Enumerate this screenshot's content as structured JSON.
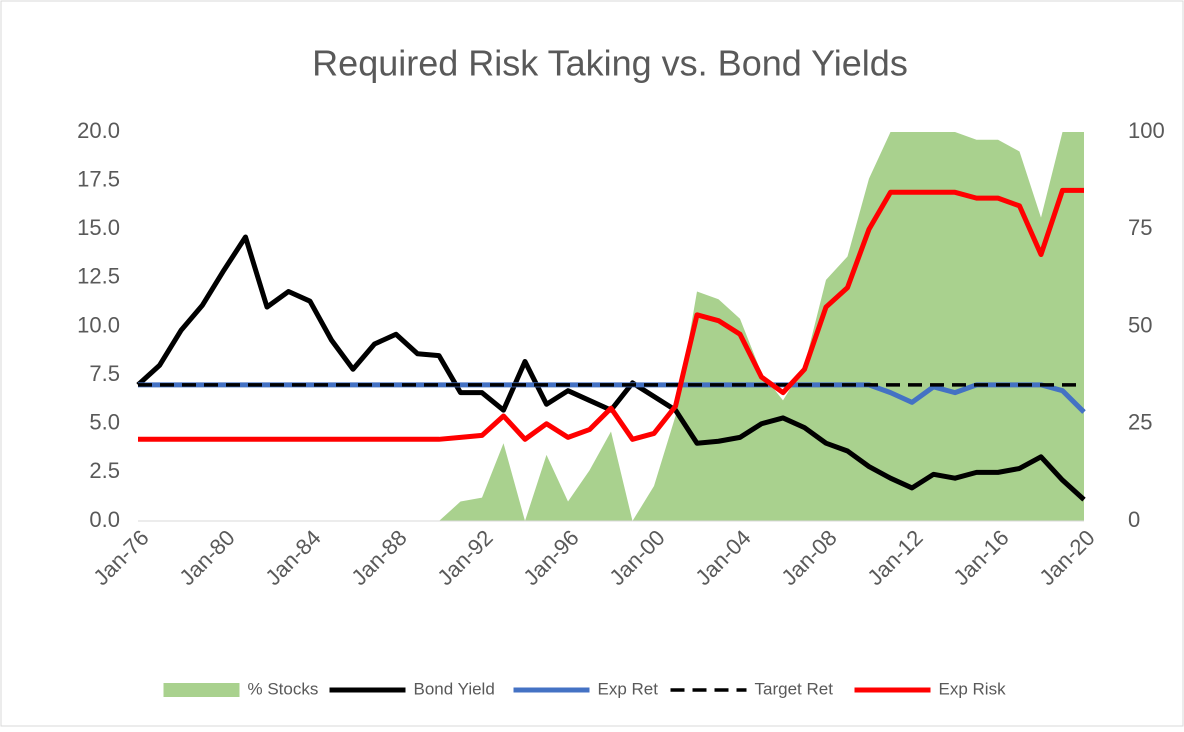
{
  "chart_data": {
    "type": "line",
    "title": "Required Risk Taking vs. Bond Yields",
    "categories": [
      "Jan-76",
      null,
      null,
      null,
      "Jan-80",
      null,
      null,
      null,
      "Jan-84",
      null,
      null,
      null,
      "Jan-88",
      null,
      null,
      null,
      "Jan-92",
      null,
      null,
      null,
      "Jan-96",
      null,
      null,
      null,
      "Jan-00",
      null,
      null,
      null,
      "Jan-04",
      null,
      null,
      null,
      "Jan-08",
      null,
      null,
      null,
      "Jan-12",
      null,
      null,
      null,
      "Jan-16",
      null,
      null,
      null,
      "Jan-20"
    ],
    "series": [
      {
        "name": "% Stocks",
        "type": "area",
        "axis": "y2",
        "color": "#a9d18e",
        "values": [
          0,
          0,
          0,
          0,
          0,
          0,
          0,
          0,
          0,
          0,
          0,
          0,
          0,
          0,
          0,
          5,
          6,
          20,
          0,
          17,
          5,
          13,
          23,
          0,
          9,
          27,
          59,
          57,
          52,
          38,
          31,
          40,
          62,
          68,
          88,
          100,
          100,
          100,
          100,
          98,
          98,
          95,
          78,
          100,
          100
        ]
      },
      {
        "name": "Bond Yield",
        "color": "#000000",
        "values": [
          7.0,
          8.0,
          9.8,
          11.1,
          12.9,
          14.6,
          11.0,
          11.8,
          11.3,
          9.3,
          7.8,
          9.1,
          9.6,
          8.6,
          8.5,
          6.6,
          6.6,
          5.7,
          8.2,
          6.0,
          6.7,
          6.2,
          5.7,
          7.1,
          6.4,
          5.7,
          4.0,
          4.1,
          4.3,
          5.0,
          5.3,
          4.8,
          4.0,
          3.6,
          2.8,
          2.2,
          1.7,
          2.4,
          2.2,
          2.5,
          2.5,
          2.7,
          3.3,
          2.1,
          1.1
        ]
      },
      {
        "name": "Exp Ret",
        "color": "#4472c4",
        "values": [
          7.0,
          7.0,
          7.0,
          7.0,
          7.0,
          7.0,
          7.0,
          7.0,
          7.0,
          7.0,
          7.0,
          7.0,
          7.0,
          7.0,
          7.0,
          7.0,
          7.0,
          7.0,
          7.0,
          7.0,
          7.0,
          7.0,
          7.0,
          7.0,
          7.0,
          7.0,
          7.0,
          7.0,
          7.0,
          7.0,
          7.0,
          7.0,
          7.0,
          7.0,
          7.0,
          6.6,
          6.1,
          6.9,
          6.6,
          7.0,
          7.0,
          7.0,
          7.0,
          6.7,
          5.6
        ]
      },
      {
        "name": "Target Ret",
        "color": "#000000",
        "dash": true,
        "values": [
          7.0,
          7.0,
          7.0,
          7.0,
          7.0,
          7.0,
          7.0,
          7.0,
          7.0,
          7.0,
          7.0,
          7.0,
          7.0,
          7.0,
          7.0,
          7.0,
          7.0,
          7.0,
          7.0,
          7.0,
          7.0,
          7.0,
          7.0,
          7.0,
          7.0,
          7.0,
          7.0,
          7.0,
          7.0,
          7.0,
          7.0,
          7.0,
          7.0,
          7.0,
          7.0,
          7.0,
          7.0,
          7.0,
          7.0,
          7.0,
          7.0,
          7.0,
          7.0,
          7.0,
          7.0
        ]
      },
      {
        "name": "Exp Risk",
        "color": "#ff0000",
        "values": [
          4.2,
          4.2,
          4.2,
          4.2,
          4.2,
          4.2,
          4.2,
          4.2,
          4.2,
          4.2,
          4.2,
          4.2,
          4.2,
          4.2,
          4.2,
          4.3,
          4.4,
          5.4,
          4.2,
          5.0,
          4.3,
          4.7,
          5.8,
          4.2,
          4.5,
          5.9,
          10.6,
          10.3,
          9.6,
          7.4,
          6.6,
          7.8,
          11.0,
          12.0,
          15.0,
          16.9,
          16.9,
          16.9,
          16.9,
          16.6,
          16.6,
          16.2,
          13.7,
          17.0,
          17.0
        ]
      }
    ],
    "ylim": [
      0,
      20
    ],
    "yticks": [
      {
        "value": 0,
        "label": "0.0"
      },
      {
        "value": 2.5,
        "label": "2.5"
      },
      {
        "value": 5,
        "label": "5.0"
      },
      {
        "value": 7.5,
        "label": "7.5"
      },
      {
        "value": 10,
        "label": "10.0"
      },
      {
        "value": 12.5,
        "label": "12.5"
      },
      {
        "value": 15,
        "label": "15.0"
      },
      {
        "value": 17.5,
        "label": "17.5"
      },
      {
        "value": 20,
        "label": "20.0"
      }
    ],
    "y2lim": [
      0,
      100
    ],
    "y2ticks": [
      0,
      25,
      50,
      75,
      100
    ],
    "legend": "bottom"
  }
}
